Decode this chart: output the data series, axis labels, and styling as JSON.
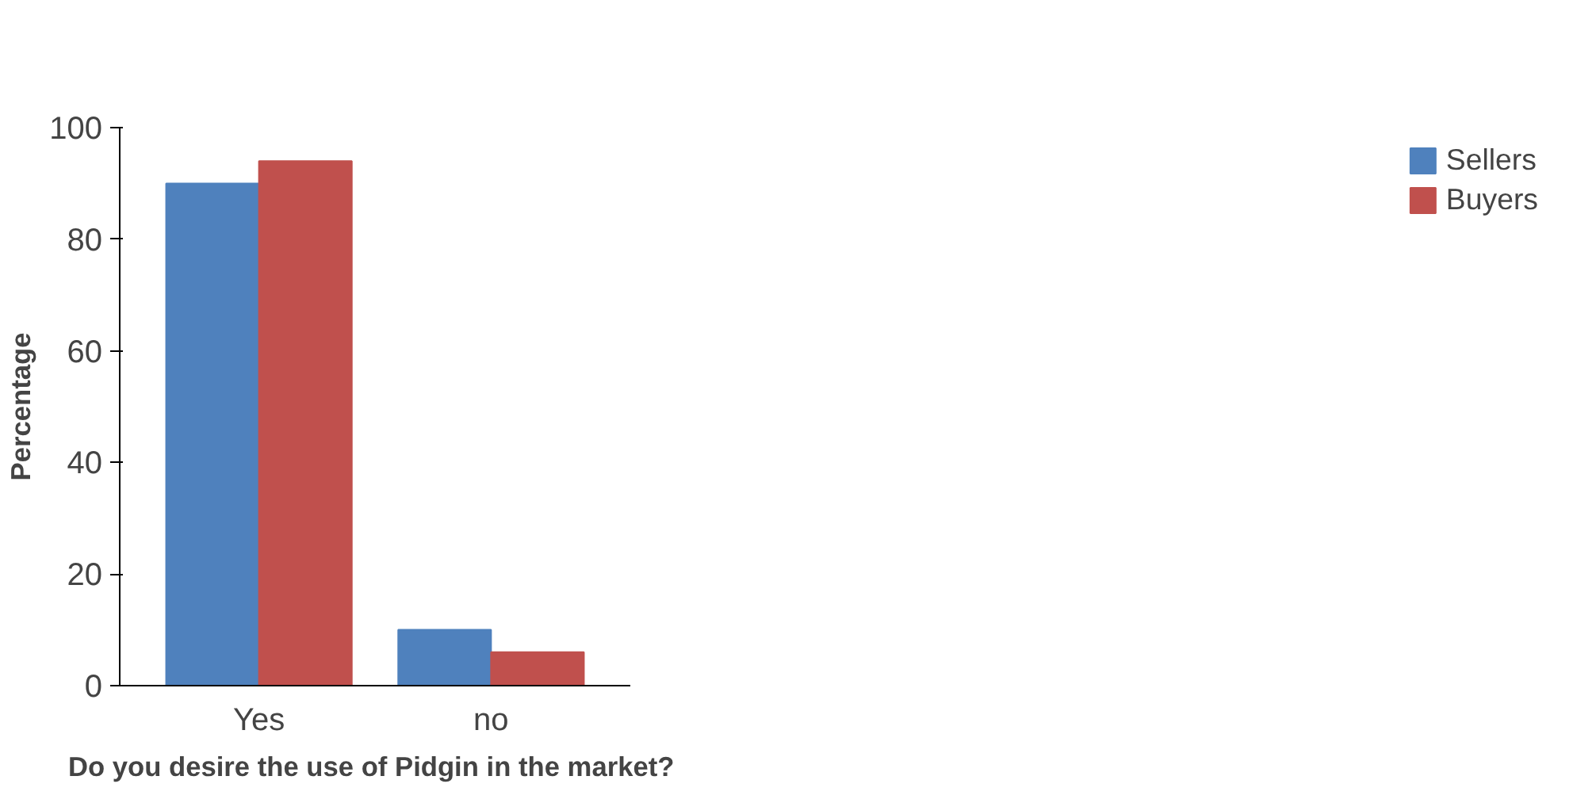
{
  "chart_data": {
    "type": "bar",
    "xlabel": "Do you desire the use of Pidgin  in the market?",
    "ylabel": "Percentage",
    "categories": [
      "Yes",
      "no"
    ],
    "series": [
      {
        "name": "Sellers",
        "color": "#4f81bd",
        "values": [
          90,
          10
        ]
      },
      {
        "name": "Buyers",
        "color": "#c0504d",
        "values": [
          94,
          6
        ]
      }
    ],
    "ylim": [
      0,
      100
    ],
    "yticks": [
      0,
      20,
      40,
      60,
      80,
      100
    ],
    "grid": false,
    "legend": "right"
  }
}
